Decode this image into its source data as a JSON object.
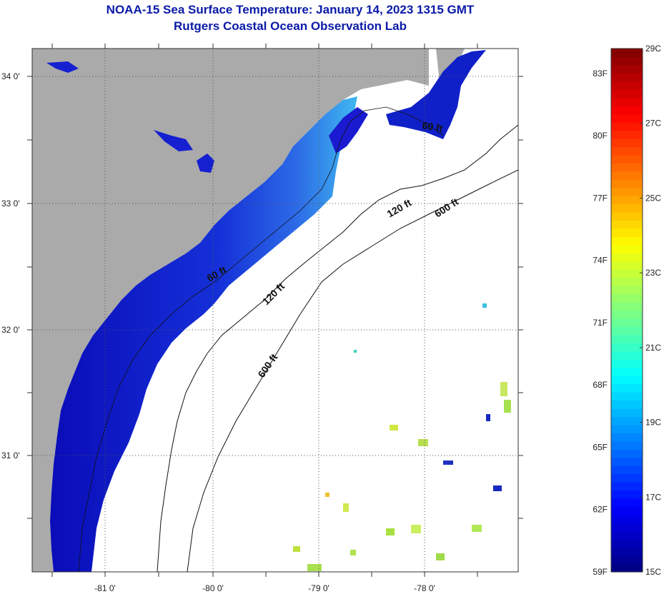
{
  "title": {
    "line1": "NOAA-15 Sea Surface Temperature:  January 14, 2023 1315 GMT",
    "line2": "Rutgers Coastal Ocean Observation Lab"
  },
  "map": {
    "y_ticks": [
      {
        "id": "lat-34",
        "label": "34 0'",
        "lat": 34.0
      },
      {
        "id": "lat-33",
        "label": "33 0'",
        "lat": 33.0
      },
      {
        "id": "lat-32",
        "label": "32 0'",
        "lat": 32.0
      },
      {
        "id": "lat-31",
        "label": "31 0'",
        "lat": 31.0
      }
    ],
    "x_ticks": [
      {
        "id": "lon-81",
        "label": "-81 0'",
        "lon": -81.0
      },
      {
        "id": "lon-80",
        "label": "-80 0'",
        "lon": -80.0
      },
      {
        "id": "lon-79",
        "label": "-79 0'",
        "lon": -79.0
      },
      {
        "id": "lon-78",
        "label": "-78 0'",
        "lon": -78.0
      }
    ],
    "contour_labels": [
      {
        "id": "c60a",
        "text": "60 ft"
      },
      {
        "id": "c120a",
        "text": "120 ft"
      },
      {
        "id": "c600a",
        "text": "600 ft"
      },
      {
        "id": "c60b",
        "text": "60 ft"
      },
      {
        "id": "c120b",
        "text": "120 ft"
      },
      {
        "id": "c600b",
        "text": "600 ft"
      }
    ],
    "colors": {
      "land": "#aaaaaa",
      "ocean_no_data": "#ffffff",
      "cold_water": "#0a10c8",
      "mid_water": "#1a4ae0",
      "warm_patch": "#9ee04a"
    }
  },
  "colorbar": {
    "min_c": 15,
    "max_c": 29,
    "celsius_labels": [
      "29C",
      "27C",
      "25C",
      "23C",
      "21C",
      "19C",
      "17C",
      "15C"
    ],
    "fahrenheit_labels": [
      "83F",
      "80F",
      "77F",
      "74F",
      "71F",
      "68F",
      "65F",
      "62F",
      "59F"
    ]
  }
}
